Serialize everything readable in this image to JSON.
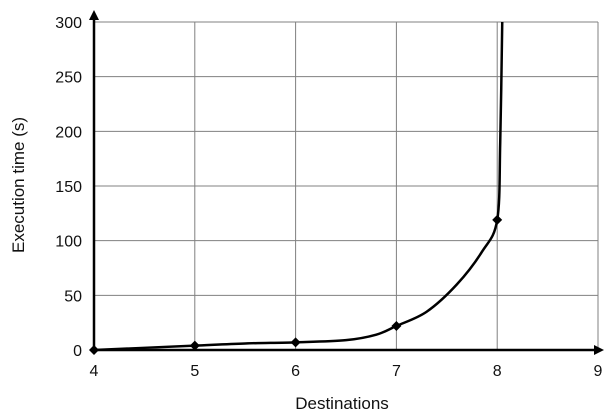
{
  "chart_data": {
    "type": "line",
    "title": "",
    "xlabel": "Destinations",
    "ylabel": "Execution time (s)",
    "xlim": [
      4,
      9
    ],
    "ylim": [
      0,
      300
    ],
    "x_ticks": [
      4,
      5,
      6,
      7,
      8,
      9
    ],
    "y_ticks": [
      0,
      50,
      100,
      150,
      200,
      250,
      300
    ],
    "grid": true,
    "legend": "none",
    "colors": {
      "line": "#000000",
      "grid": "#808080",
      "axis": "#000000"
    },
    "series": [
      {
        "markers": [
          {
            "x": 4,
            "y": 0
          },
          {
            "x": 5,
            "y": 4
          },
          {
            "x": 6,
            "y": 7
          },
          {
            "x": 7,
            "y": 22
          },
          {
            "x": 8,
            "y": 119
          }
        ],
        "curve": [
          {
            "x": 4,
            "y": 0
          },
          {
            "x": 4.5,
            "y": 2
          },
          {
            "x": 5,
            "y": 4
          },
          {
            "x": 5.5,
            "y": 6
          },
          {
            "x": 6,
            "y": 7
          },
          {
            "x": 6.5,
            "y": 9
          },
          {
            "x": 6.8,
            "y": 14
          },
          {
            "x": 7,
            "y": 22
          },
          {
            "x": 7.3,
            "y": 35
          },
          {
            "x": 7.6,
            "y": 60
          },
          {
            "x": 7.85,
            "y": 90
          },
          {
            "x": 8,
            "y": 119
          },
          {
            "x": 8.03,
            "y": 190
          },
          {
            "x": 8.05,
            "y": 300
          }
        ]
      }
    ]
  }
}
